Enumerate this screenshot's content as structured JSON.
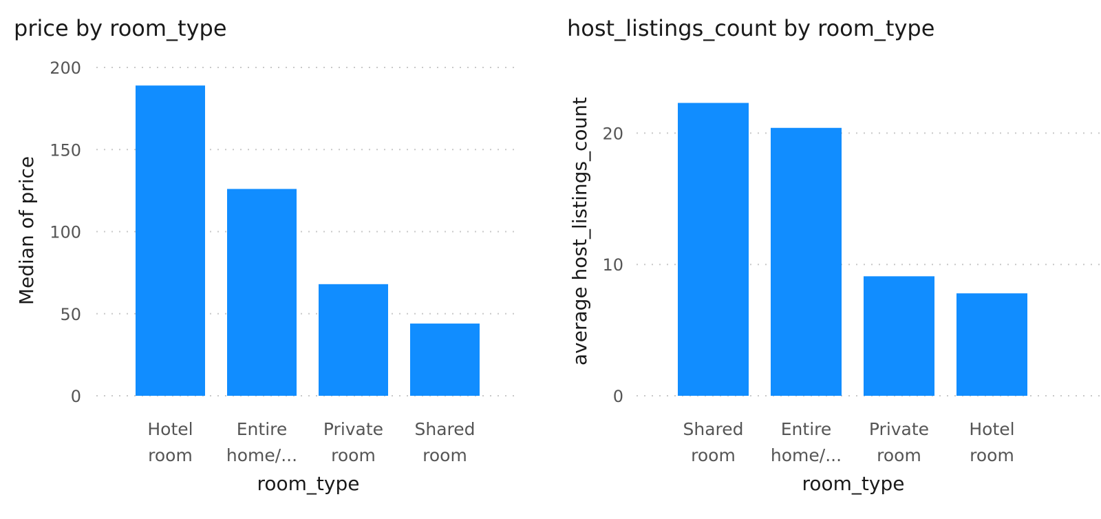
{
  "colors": {
    "bar": "#118DFF",
    "grid": "#c8c8c8",
    "text": "#1a1a1a",
    "tick_text": "#555555"
  },
  "chart_data": [
    {
      "type": "bar",
      "title": "price by room_type",
      "xlabel": "room_type",
      "ylabel": "Median of price",
      "categories": [
        "Hotel room",
        "Entire home/...",
        "Private room",
        "Shared room"
      ],
      "category_lines": [
        [
          "Hotel",
          "room"
        ],
        [
          "Entire",
          "home/..."
        ],
        [
          "Private",
          "room"
        ],
        [
          "Shared",
          "room"
        ]
      ],
      "values": [
        189,
        126,
        68,
        44
      ],
      "ylim": [
        0,
        200
      ],
      "yticks": [
        0,
        50,
        100,
        150,
        200
      ],
      "grid": true,
      "legend": "none"
    },
    {
      "type": "bar",
      "title": "host_listings_count by room_type",
      "xlabel": "room_type",
      "ylabel": "average host_listings_count",
      "categories": [
        "Shared room",
        "Entire home/...",
        "Private room",
        "Hotel room"
      ],
      "category_lines": [
        [
          "Shared",
          "room"
        ],
        [
          "Entire",
          "home/..."
        ],
        [
          "Private",
          "room"
        ],
        [
          "Hotel",
          "room"
        ]
      ],
      "values": [
        22.3,
        20.4,
        9.1,
        7.8
      ],
      "ylim": [
        0,
        25
      ],
      "yticks": [
        0,
        10,
        20
      ],
      "grid": true,
      "legend": "none"
    }
  ]
}
